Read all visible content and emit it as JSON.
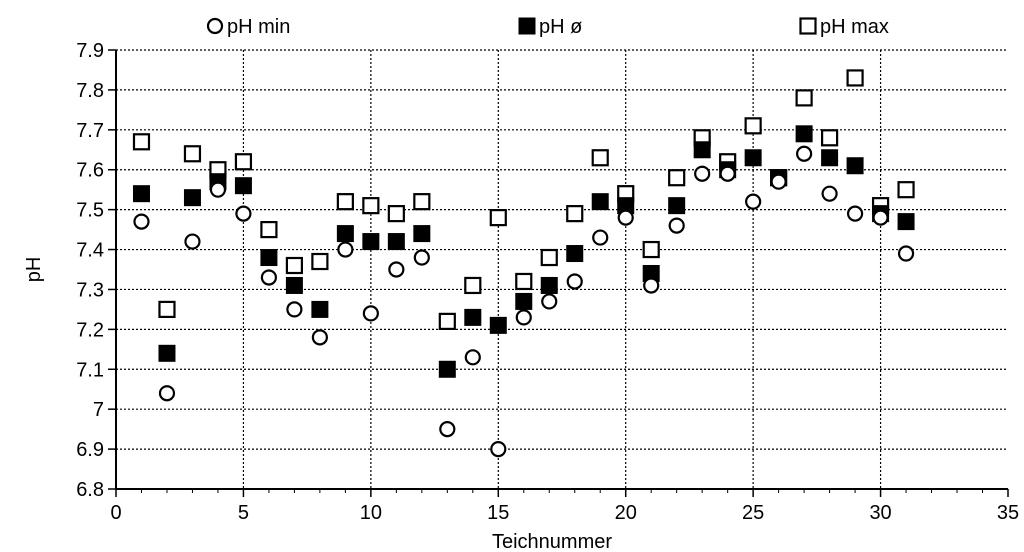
{
  "chart_data": {
    "type": "scatter",
    "xlabel": "Teichnummer",
    "ylabel": "pH",
    "xlim": [
      0,
      35
    ],
    "ylim": [
      6.8,
      7.9
    ],
    "x_ticks": [
      "0",
      "5",
      "10",
      "15",
      "20",
      "25",
      "30",
      "35"
    ],
    "y_ticks": [
      "6.8",
      "6.9",
      "7",
      "7.1",
      "7.2",
      "7.3",
      "7.4",
      "7.5",
      "7.6",
      "7.7",
      "7.8",
      "7.9"
    ],
    "grid": "horizontal dotted lines at every y tick; vertical dotted lines at every x tick",
    "legend_position": "top",
    "series": [
      {
        "name": "pH min",
        "marker": "open-circle",
        "color": "#000000",
        "points": [
          [
            1,
            7.47
          ],
          [
            2,
            7.04
          ],
          [
            3,
            7.42
          ],
          [
            4,
            7.55
          ],
          [
            5,
            7.49
          ],
          [
            6,
            7.33
          ],
          [
            7,
            7.25
          ],
          [
            8,
            7.18
          ],
          [
            9,
            7.4
          ],
          [
            10,
            7.24
          ],
          [
            11,
            7.35
          ],
          [
            12,
            7.38
          ],
          [
            13,
            6.95
          ],
          [
            14,
            7.13
          ],
          [
            15,
            6.9
          ],
          [
            16,
            7.23
          ],
          [
            17,
            7.27
          ],
          [
            18,
            7.32
          ],
          [
            19,
            7.43
          ],
          [
            20,
            7.48
          ],
          [
            21,
            7.31
          ],
          [
            22,
            7.46
          ],
          [
            23,
            7.59
          ],
          [
            24,
            7.59
          ],
          [
            25,
            7.52
          ],
          [
            26,
            7.57
          ],
          [
            27,
            7.64
          ],
          [
            28,
            7.54
          ],
          [
            29,
            7.49
          ],
          [
            30,
            7.48
          ],
          [
            31,
            7.39
          ]
        ]
      },
      {
        "name": "pH ø",
        "marker": "filled-square",
        "color": "#000000",
        "points": [
          [
            1,
            7.54
          ],
          [
            2,
            7.14
          ],
          [
            3,
            7.53
          ],
          [
            4,
            7.57
          ],
          [
            5,
            7.56
          ],
          [
            6,
            7.38
          ],
          [
            7,
            7.31
          ],
          [
            8,
            7.25
          ],
          [
            9,
            7.44
          ],
          [
            10,
            7.42
          ],
          [
            11,
            7.42
          ],
          [
            12,
            7.44
          ],
          [
            13,
            7.1
          ],
          [
            14,
            7.23
          ],
          [
            15,
            7.21
          ],
          [
            16,
            7.27
          ],
          [
            17,
            7.31
          ],
          [
            18,
            7.39
          ],
          [
            19,
            7.52
          ],
          [
            20,
            7.51
          ],
          [
            21,
            7.34
          ],
          [
            22,
            7.51
          ],
          [
            23,
            7.65
          ],
          [
            24,
            7.6
          ],
          [
            25,
            7.63
          ],
          [
            26,
            7.58
          ],
          [
            27,
            7.69
          ],
          [
            28,
            7.63
          ],
          [
            29,
            7.61
          ],
          [
            30,
            7.49
          ],
          [
            31,
            7.47
          ]
        ]
      },
      {
        "name": "pH max",
        "marker": "open-square",
        "color": "#000000",
        "points": [
          [
            1,
            7.67
          ],
          [
            2,
            7.25
          ],
          [
            3,
            7.64
          ],
          [
            4,
            7.6
          ],
          [
            5,
            7.62
          ],
          [
            6,
            7.45
          ],
          [
            7,
            7.36
          ],
          [
            8,
            7.37
          ],
          [
            9,
            7.52
          ],
          [
            10,
            7.51
          ],
          [
            11,
            7.49
          ],
          [
            12,
            7.52
          ],
          [
            13,
            7.22
          ],
          [
            14,
            7.31
          ],
          [
            15,
            7.48
          ],
          [
            16,
            7.32
          ],
          [
            17,
            7.38
          ],
          [
            18,
            7.49
          ],
          [
            19,
            7.63
          ],
          [
            20,
            7.54
          ],
          [
            21,
            7.4
          ],
          [
            22,
            7.58
          ],
          [
            23,
            7.68
          ],
          [
            24,
            7.62
          ],
          [
            25,
            7.71
          ],
          [
            26,
            7.58
          ],
          [
            27,
            7.78
          ],
          [
            28,
            7.68
          ],
          [
            29,
            7.83
          ],
          [
            30,
            7.51
          ],
          [
            31,
            7.55
          ]
        ]
      }
    ]
  }
}
